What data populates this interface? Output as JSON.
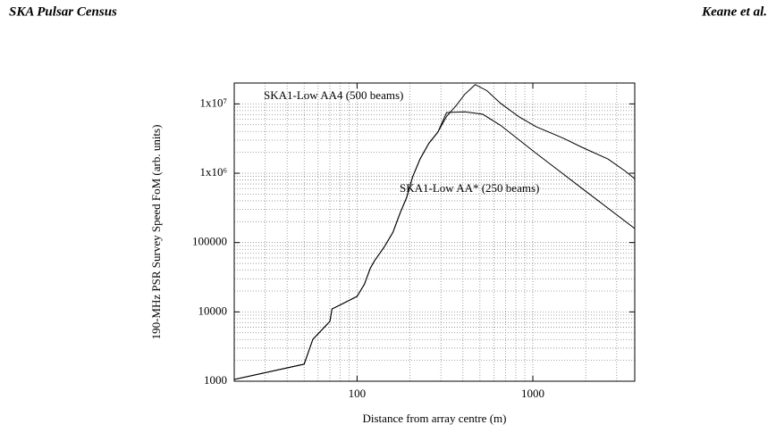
{
  "header": {
    "left": "SKA Pulsar Census",
    "right": "Keane et al."
  },
  "chart_data": {
    "type": "line",
    "x_label": "Distance from array centre (m)",
    "y_label": "190-MHz PSR Survey Speed FoM (arb. units)",
    "xlog": true,
    "ylog": true,
    "grid": true,
    "minor_grid": true,
    "xlim": [
      20,
      3800
    ],
    "ylim": [
      1000,
      20000000
    ],
    "xticks": [
      100,
      1000
    ],
    "yticks": [
      1000,
      10000,
      100000,
      {
        "value": 1000000,
        "label": "1x10⁶"
      },
      {
        "value": 10000000,
        "label": "1x10⁷"
      }
    ],
    "series": [
      {
        "name": "SKA1-Low AA4 (500 beams)",
        "color": "#000000",
        "x": [
          20,
          50,
          56,
          70,
          72,
          100,
          110,
          119,
          126,
          142,
          160,
          176,
          191,
          207,
          228,
          256,
          288,
          323,
          365,
          409,
          470,
          548,
          655,
          828,
          1040,
          1490,
          1880,
          2680,
          3380,
          3800
        ],
        "values": [
          1060,
          1760,
          4000,
          7300,
          11000,
          16700,
          25000,
          43000,
          55000,
          85000,
          140000,
          270000,
          440000,
          880000,
          1600000,
          2700000,
          3900000,
          6600000,
          9400000,
          13700000,
          19000000,
          15500000,
          10200000,
          6600000,
          4700000,
          3200000,
          2400000,
          1600000,
          1060000,
          830000
        ]
      },
      {
        "name": "SKA1-Low AA* (250 beams)",
        "color": "#000000",
        "x": [
          20,
          50,
          56,
          70,
          72,
          100,
          110,
          119,
          126,
          142,
          160,
          176,
          191,
          207,
          228,
          256,
          288,
          323,
          409,
          518,
          655,
          1040,
          1880,
          3800
        ],
        "values": [
          1060,
          1760,
          4000,
          7300,
          11000,
          16700,
          25000,
          43000,
          55000,
          85000,
          140000,
          270000,
          440000,
          880000,
          1600000,
          2700000,
          3900000,
          7500000,
          7700000,
          7100000,
          4900000,
          1950000,
          620000,
          159000
        ]
      }
    ]
  }
}
